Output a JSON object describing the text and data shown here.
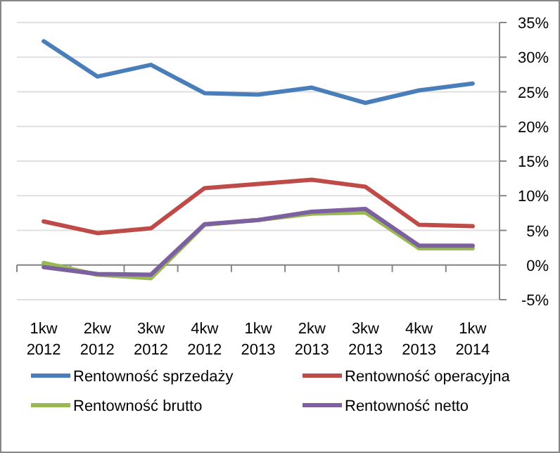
{
  "chart_data": {
    "type": "line",
    "categories": [
      "1kw\n2012",
      "2kw\n2012",
      "3kw\n2012",
      "4kw\n2012",
      "1kw\n2013",
      "2kw\n2013",
      "3kw\n2013",
      "4kw\n2013",
      "1kw\n2014"
    ],
    "series": [
      {
        "name": "Rentowność sprzedaży",
        "color": "#4a7ebb",
        "values": [
          32.3,
          27.2,
          28.9,
          24.8,
          24.6,
          25.6,
          23.4,
          25.2,
          26.2
        ]
      },
      {
        "name": "Rentowność operacyjna",
        "color": "#be4b48",
        "values": [
          6.3,
          4.6,
          5.3,
          11.1,
          11.7,
          12.3,
          11.3,
          5.8,
          5.6
        ]
      },
      {
        "name": "Rentowność brutto",
        "color": "#98b954",
        "values": [
          0.3,
          -1.4,
          -1.9,
          5.8,
          6.5,
          7.4,
          7.6,
          2.4,
          2.4
        ]
      },
      {
        "name": "Rentowność netto",
        "color": "#7d60a0",
        "values": [
          -0.3,
          -1.3,
          -1.4,
          5.9,
          6.5,
          7.7,
          8.1,
          2.8,
          2.8
        ]
      }
    ],
    "ylim": [
      -5,
      35
    ],
    "yticks": [
      {
        "value": -5,
        "label": "-5%"
      },
      {
        "value": 0,
        "label": "0%"
      },
      {
        "value": 5,
        "label": "5%"
      },
      {
        "value": 10,
        "label": "10%"
      },
      {
        "value": 15,
        "label": "15%"
      },
      {
        "value": 20,
        "label": "20%"
      },
      {
        "value": 25,
        "label": "25%"
      },
      {
        "value": 30,
        "label": "30%"
      },
      {
        "value": 35,
        "label": "35%"
      }
    ],
    "grid": "y",
    "legend": "bottom",
    "marker": "none",
    "line_style": "solid"
  }
}
